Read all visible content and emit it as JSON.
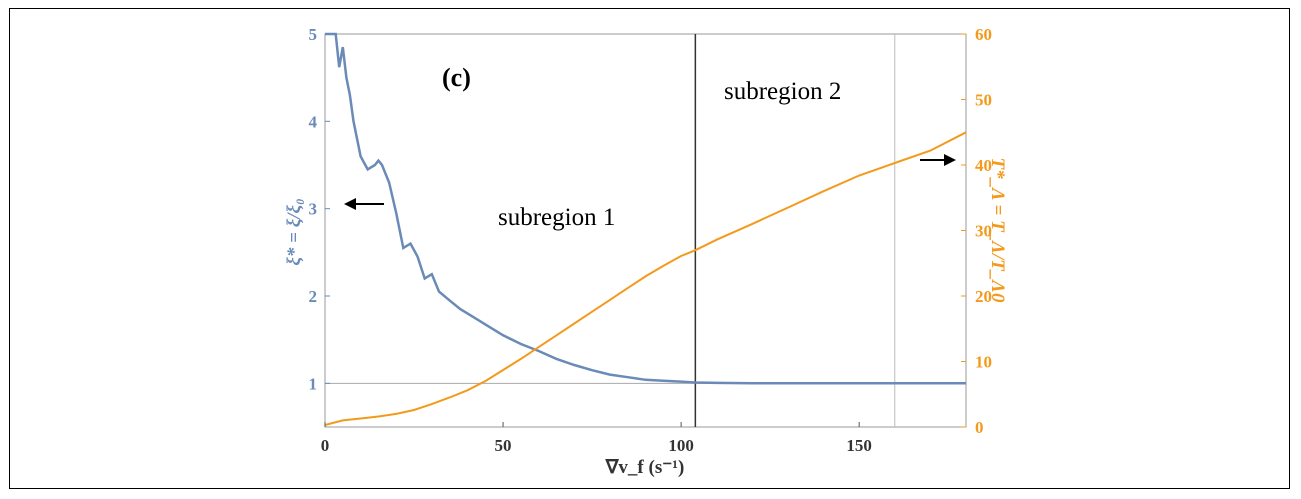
{
  "chart_data": {
    "type": "line",
    "panel_label": "(c)",
    "xlabel": "∇v_f (s⁻¹)",
    "ylabel_left": "ξ* = ξ/ξ₀",
    "ylabel_right": "T*_Λ = T_Λ/T_Λ0",
    "xlim": [
      0,
      180
    ],
    "ylim_left": [
      0.5,
      5
    ],
    "ylim_right": [
      0,
      60
    ],
    "x_ticks": [
      "0",
      "50",
      "100",
      "150"
    ],
    "y_left_ticks": [
      "1",
      "2",
      "3",
      "4",
      "5"
    ],
    "y_right_ticks": [
      "0",
      "10",
      "20",
      "30",
      "40",
      "50",
      "60"
    ],
    "annotations": [
      "subregion 1",
      "subregion 2"
    ],
    "reference_lines": {
      "horizontal_left_y": 1,
      "vertical_x_dark": 104,
      "vertical_x_light": 160
    },
    "colors": {
      "left_series": "#6a8ab8",
      "right_series": "#f39a1c"
    },
    "series": [
      {
        "axis": "left",
        "x": [
          0,
          3,
          4,
          5,
          6,
          7,
          8,
          10,
          12,
          14,
          15,
          16,
          18,
          20,
          22,
          24,
          26,
          28,
          30,
          32,
          35,
          38,
          42,
          46,
          50,
          55,
          60,
          65,
          70,
          75,
          80,
          85,
          90,
          95,
          100,
          104,
          110,
          120,
          130,
          140,
          150,
          160,
          170,
          180
        ],
        "values": [
          5.15,
          5.0,
          4.62,
          4.85,
          4.5,
          4.3,
          4.0,
          3.6,
          3.45,
          3.5,
          3.55,
          3.5,
          3.3,
          2.95,
          2.55,
          2.6,
          2.45,
          2.2,
          2.25,
          2.05,
          1.95,
          1.85,
          1.75,
          1.65,
          1.55,
          1.45,
          1.37,
          1.28,
          1.21,
          1.15,
          1.1,
          1.07,
          1.04,
          1.03,
          1.02,
          1.01,
          1.005,
          1.0,
          1.0,
          1.0,
          1.0,
          1.0,
          1.0,
          1.0
        ]
      },
      {
        "axis": "right",
        "x": [
          0,
          5,
          10,
          15,
          20,
          25,
          30,
          35,
          40,
          45,
          50,
          55,
          60,
          65,
          70,
          75,
          80,
          85,
          90,
          95,
          100,
          104,
          110,
          120,
          130,
          140,
          150,
          160,
          170,
          180
        ],
        "values": [
          0.3,
          1.0,
          1.3,
          1.6,
          2.0,
          2.6,
          3.5,
          4.5,
          5.6,
          7.0,
          8.7,
          10.4,
          12.2,
          14.0,
          15.8,
          17.6,
          19.4,
          21.2,
          23.0,
          24.6,
          26.1,
          27.0,
          28.6,
          31.0,
          33.5,
          36.0,
          38.4,
          40.3,
          42.2,
          45.0
        ]
      }
    ]
  }
}
